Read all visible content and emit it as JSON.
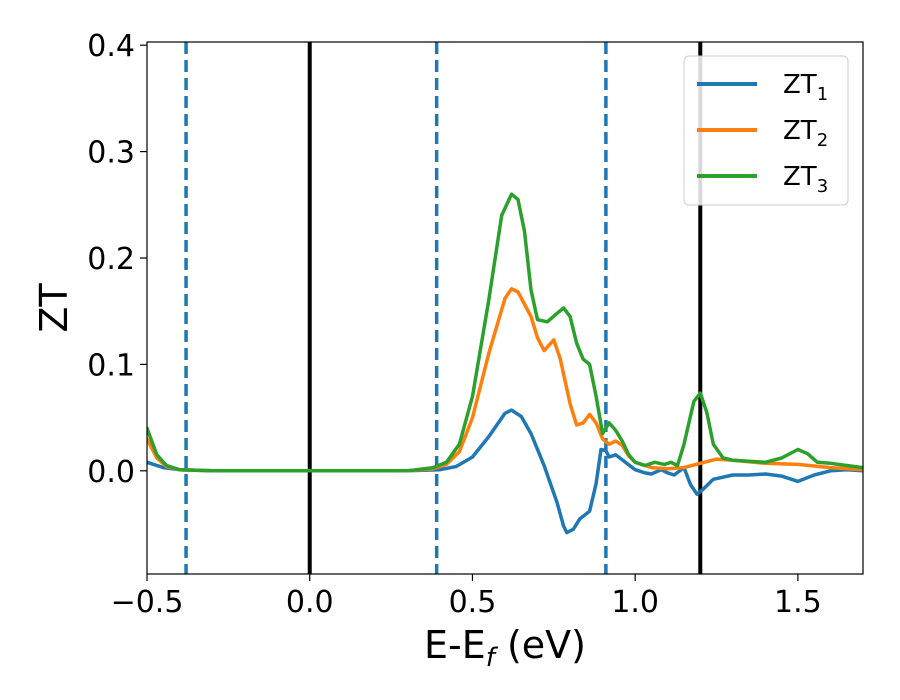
{
  "chart_data": {
    "type": "line",
    "title": "",
    "xlabel": "E-E",
    "xlabel_sub": "f",
    "xlabel_unit": " (eV)",
    "ylabel": "ZT",
    "xlim": [
      -0.5,
      1.7
    ],
    "ylim": [
      -0.097,
      0.403
    ],
    "xticks": [
      -0.5,
      0.0,
      0.5,
      1.0,
      1.5
    ],
    "xtick_labels": [
      "−0.5",
      "0.0",
      "0.5",
      "1.0",
      "1.5"
    ],
    "yticks": [
      0.0,
      0.1,
      0.2,
      0.3,
      0.4
    ],
    "ytick_labels": [
      "0.0",
      "0.1",
      "0.2",
      "0.3",
      "0.4"
    ],
    "grid": false,
    "legend_position": "top-right",
    "vlines": [
      {
        "x": -0.38,
        "style": "dashed",
        "color": "#1f77b4"
      },
      {
        "x": 0.0,
        "style": "solid",
        "color": "#000000"
      },
      {
        "x": 0.39,
        "style": "dashed",
        "color": "#1f77b4"
      },
      {
        "x": 0.91,
        "style": "dashed",
        "color": "#1f77b4"
      },
      {
        "x": 1.2,
        "style": "solid",
        "color": "#000000"
      }
    ],
    "series": [
      {
        "name": "ZT",
        "sub": "1",
        "color": "#1f77b4",
        "points": [
          [
            -0.5,
            0.008
          ],
          [
            -0.45,
            0.003
          ],
          [
            -0.4,
            0.001
          ],
          [
            -0.3,
            0.0
          ],
          [
            0.0,
            0.0
          ],
          [
            0.3,
            0.0
          ],
          [
            0.4,
            0.001
          ],
          [
            0.45,
            0.004
          ],
          [
            0.5,
            0.013
          ],
          [
            0.55,
            0.032
          ],
          [
            0.6,
            0.054
          ],
          [
            0.62,
            0.057
          ],
          [
            0.65,
            0.051
          ],
          [
            0.68,
            0.035
          ],
          [
            0.72,
            0.005
          ],
          [
            0.76,
            -0.03
          ],
          [
            0.78,
            -0.052
          ],
          [
            0.79,
            -0.058
          ],
          [
            0.81,
            -0.055
          ],
          [
            0.83,
            -0.045
          ],
          [
            0.86,
            -0.038
          ],
          [
            0.88,
            -0.012
          ],
          [
            0.895,
            0.02
          ],
          [
            0.91,
            0.019
          ],
          [
            0.92,
            0.013
          ],
          [
            0.94,
            0.015
          ],
          [
            0.97,
            0.008
          ],
          [
            1.0,
            0.001
          ],
          [
            1.03,
            -0.002
          ],
          [
            1.05,
            -0.003
          ],
          [
            1.08,
            0.001
          ],
          [
            1.1,
            -0.002
          ],
          [
            1.12,
            -0.004
          ],
          [
            1.15,
            0.003
          ],
          [
            1.17,
            -0.013
          ],
          [
            1.19,
            -0.022
          ],
          [
            1.21,
            -0.017
          ],
          [
            1.24,
            -0.008
          ],
          [
            1.3,
            -0.004
          ],
          [
            1.35,
            -0.004
          ],
          [
            1.4,
            -0.003
          ],
          [
            1.45,
            -0.005
          ],
          [
            1.5,
            -0.01
          ],
          [
            1.55,
            -0.004
          ],
          [
            1.6,
            0.0
          ],
          [
            1.65,
            0.001
          ],
          [
            1.7,
            0.0
          ]
        ]
      },
      {
        "name": "ZT",
        "sub": "2",
        "color": "#ff7f0e",
        "points": [
          [
            -0.5,
            0.03
          ],
          [
            -0.47,
            0.012
          ],
          [
            -0.44,
            0.004
          ],
          [
            -0.4,
            0.001
          ],
          [
            -0.3,
            0.0
          ],
          [
            0.0,
            0.0
          ],
          [
            0.3,
            0.0
          ],
          [
            0.38,
            0.002
          ],
          [
            0.42,
            0.006
          ],
          [
            0.46,
            0.018
          ],
          [
            0.5,
            0.05
          ],
          [
            0.55,
            0.11
          ],
          [
            0.6,
            0.162
          ],
          [
            0.62,
            0.171
          ],
          [
            0.64,
            0.168
          ],
          [
            0.68,
            0.145
          ],
          [
            0.7,
            0.125
          ],
          [
            0.72,
            0.113
          ],
          [
            0.75,
            0.123
          ],
          [
            0.77,
            0.105
          ],
          [
            0.8,
            0.063
          ],
          [
            0.82,
            0.043
          ],
          [
            0.84,
            0.045
          ],
          [
            0.86,
            0.053
          ],
          [
            0.88,
            0.045
          ],
          [
            0.9,
            0.03
          ],
          [
            0.92,
            0.025
          ],
          [
            0.94,
            0.028
          ],
          [
            0.96,
            0.024
          ],
          [
            0.98,
            0.014
          ],
          [
            1.0,
            0.008
          ],
          [
            1.05,
            0.003
          ],
          [
            1.1,
            0.002
          ],
          [
            1.15,
            0.003
          ],
          [
            1.2,
            0.007
          ],
          [
            1.25,
            0.011
          ],
          [
            1.3,
            0.01
          ],
          [
            1.4,
            0.007
          ],
          [
            1.5,
            0.006
          ],
          [
            1.6,
            0.003
          ],
          [
            1.7,
            0.001
          ]
        ]
      },
      {
        "name": "ZT",
        "sub": "3",
        "color": "#2ca02c",
        "points": [
          [
            -0.5,
            0.04
          ],
          [
            -0.47,
            0.015
          ],
          [
            -0.44,
            0.005
          ],
          [
            -0.4,
            0.001
          ],
          [
            -0.3,
            0.0
          ],
          [
            0.0,
            0.0
          ],
          [
            0.3,
            0.0
          ],
          [
            0.38,
            0.003
          ],
          [
            0.42,
            0.008
          ],
          [
            0.46,
            0.025
          ],
          [
            0.5,
            0.07
          ],
          [
            0.55,
            0.16
          ],
          [
            0.59,
            0.24
          ],
          [
            0.62,
            0.26
          ],
          [
            0.64,
            0.255
          ],
          [
            0.66,
            0.225
          ],
          [
            0.68,
            0.17
          ],
          [
            0.7,
            0.142
          ],
          [
            0.73,
            0.14
          ],
          [
            0.76,
            0.148
          ],
          [
            0.78,
            0.153
          ],
          [
            0.8,
            0.145
          ],
          [
            0.82,
            0.12
          ],
          [
            0.84,
            0.105
          ],
          [
            0.86,
            0.1
          ],
          [
            0.88,
            0.07
          ],
          [
            0.9,
            0.035
          ],
          [
            0.92,
            0.045
          ],
          [
            0.94,
            0.038
          ],
          [
            0.96,
            0.028
          ],
          [
            0.98,
            0.015
          ],
          [
            1.0,
            0.008
          ],
          [
            1.03,
            0.005
          ],
          [
            1.06,
            0.008
          ],
          [
            1.09,
            0.006
          ],
          [
            1.11,
            0.008
          ],
          [
            1.13,
            0.005
          ],
          [
            1.15,
            0.025
          ],
          [
            1.18,
            0.065
          ],
          [
            1.2,
            0.073
          ],
          [
            1.22,
            0.055
          ],
          [
            1.24,
            0.025
          ],
          [
            1.27,
            0.012
          ],
          [
            1.3,
            0.01
          ],
          [
            1.35,
            0.009
          ],
          [
            1.4,
            0.008
          ],
          [
            1.45,
            0.012
          ],
          [
            1.5,
            0.02
          ],
          [
            1.53,
            0.016
          ],
          [
            1.56,
            0.008
          ],
          [
            1.6,
            0.007
          ],
          [
            1.65,
            0.005
          ],
          [
            1.7,
            0.003
          ]
        ]
      }
    ]
  }
}
